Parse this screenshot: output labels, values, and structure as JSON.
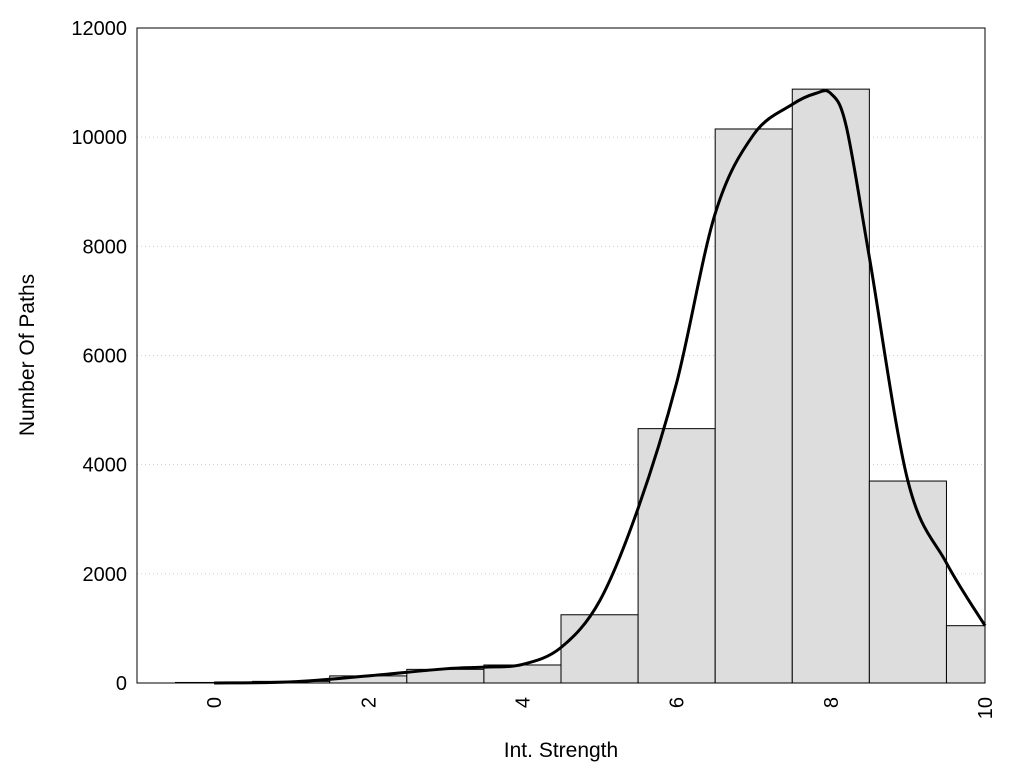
{
  "chart_data": {
    "type": "bar",
    "title": "",
    "xlabel": "Int. Strength",
    "ylabel": "Number Of Paths",
    "xlim": [
      -1,
      10
    ],
    "ylim": [
      0,
      12000
    ],
    "x_ticks": [
      0,
      2,
      4,
      6,
      8,
      10
    ],
    "y_ticks": [
      0,
      2000,
      4000,
      6000,
      8000,
      10000,
      12000
    ],
    "grid": "horizontal dotted",
    "bar_color": "#dddddd",
    "bin_width": 1,
    "bins": [
      0,
      1,
      2,
      3,
      4,
      5,
      6,
      7,
      8,
      9,
      10
    ],
    "values": [
      10,
      30,
      130,
      250,
      330,
      1250,
      4660,
      10150,
      10880,
      3700,
      1050
    ],
    "curve": {
      "x": [
        0,
        1,
        2,
        3,
        3.5,
        4,
        4.5,
        5,
        5.5,
        6,
        6.5,
        7,
        7.5,
        7.8,
        8,
        8.2,
        8.5,
        9,
        9.5,
        10
      ],
      "y": [
        0,
        20,
        130,
        260,
        290,
        340,
        650,
        1500,
        3200,
        5500,
        8600,
        10050,
        10600,
        10800,
        10800,
        10200,
        7800,
        3700,
        2200,
        1050
      ]
    }
  }
}
